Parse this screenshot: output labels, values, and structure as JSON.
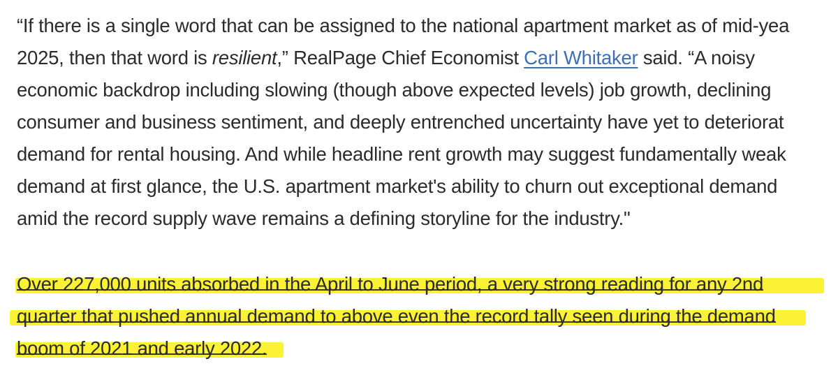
{
  "paragraph1": {
    "lines": [
      [
        "“If there is a single word that can be assigned to the national apartment market as of mid-yea"
      ],
      [
        "2025, then that word is ",
        "resilient",
        ",” RealPage Chief Economist ",
        "Carl Whitaker",
        " said. “A noisy"
      ],
      [
        "economic backdrop including slowing (though above expected levels) job growth, declining"
      ],
      [
        "consumer and business sentiment, and deeply entrenched uncertainty have yet to deteriorat"
      ],
      [
        "demand for rental housing. And while headline rent growth may suggest fundamentally weak"
      ],
      [
        "demand at first glance, the U.S. apartment market's ability to churn out exceptional demand"
      ],
      [
        "amid the record supply wave remains a defining storyline for the industry.\""
      ]
    ],
    "link_color": "#3d6fb4"
  },
  "paragraph2": {
    "highlight_color": "#fbf02a",
    "lines": [
      "Over 227,000 units absorbed in the April to June period, a very strong reading for any 2nd",
      "quarter that pushed annual demand to above even the record tally seen during the demand",
      "boom of 2021 and early 2022."
    ]
  }
}
